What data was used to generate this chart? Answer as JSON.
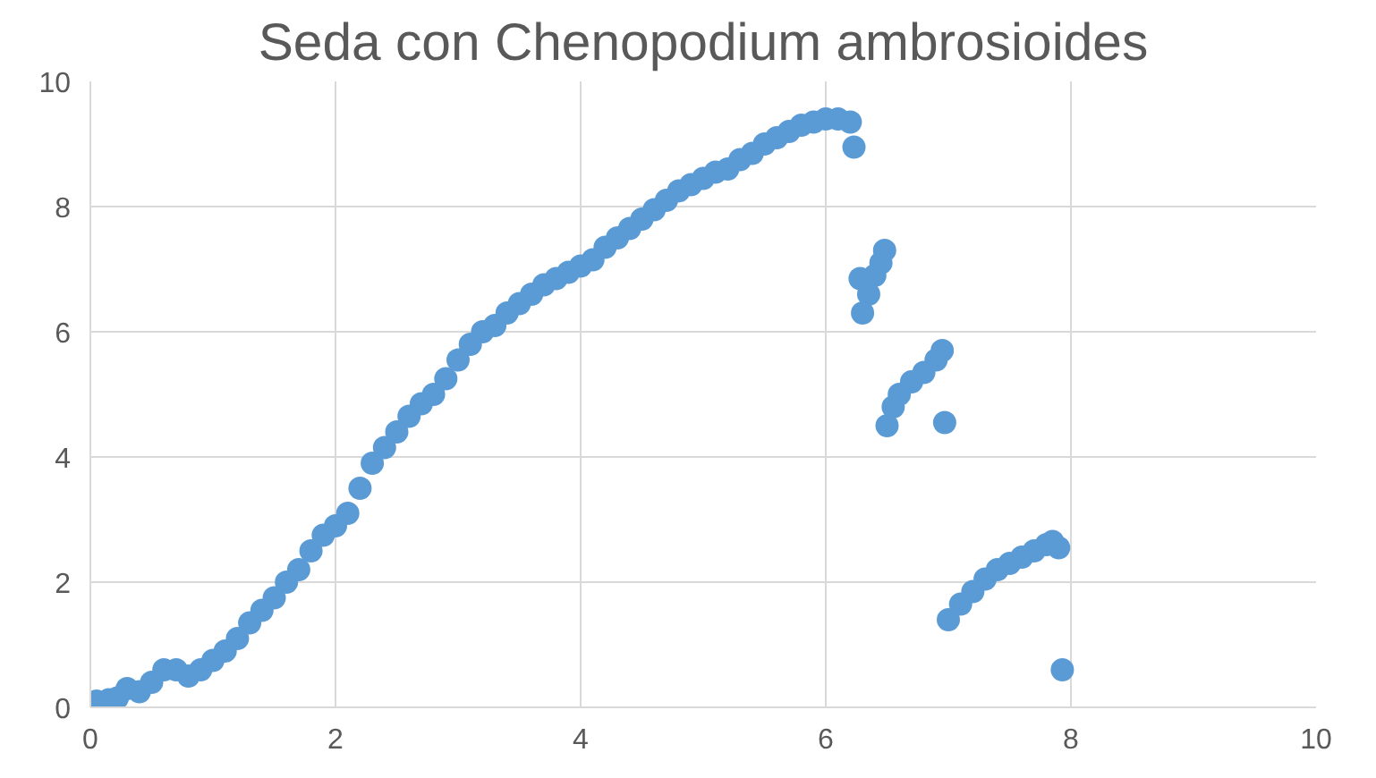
{
  "chart_data": {
    "type": "scatter",
    "title": "Seda con Chenopodium ambrosioides",
    "marker": "circle",
    "grid": true,
    "color": "#5b9bd5",
    "xlim": [
      0,
      10
    ],
    "xticks": [
      0,
      2,
      4,
      6,
      8,
      10
    ],
    "ylim": [
      0,
      10
    ],
    "yticks": [
      0,
      2,
      4,
      6,
      8,
      10
    ],
    "x": [
      0.05,
      0.15,
      0.22,
      0.3,
      0.4,
      0.5,
      0.6,
      0.7,
      0.8,
      0.9,
      1.0,
      1.1,
      1.2,
      1.3,
      1.4,
      1.5,
      1.6,
      1.7,
      1.8,
      1.9,
      2.0,
      2.1,
      2.2,
      2.3,
      2.4,
      2.5,
      2.6,
      2.7,
      2.8,
      2.9,
      3.0,
      3.1,
      3.2,
      3.3,
      3.4,
      3.5,
      3.6,
      3.7,
      3.8,
      3.9,
      4.0,
      4.1,
      4.2,
      4.3,
      4.4,
      4.5,
      4.6,
      4.7,
      4.8,
      4.9,
      5.0,
      5.1,
      5.2,
      5.3,
      5.4,
      5.5,
      5.6,
      5.7,
      5.8,
      5.9,
      6.0,
      6.1,
      6.2,
      6.23,
      6.28,
      6.3,
      6.35,
      6.4,
      6.45,
      6.48,
      6.5,
      6.55,
      6.6,
      6.7,
      6.8,
      6.9,
      6.95,
      6.97,
      7.0,
      7.1,
      7.2,
      7.3,
      7.4,
      7.5,
      7.6,
      7.7,
      7.8,
      7.85,
      7.9,
      7.93
    ],
    "values": [
      0.1,
      0.12,
      0.15,
      0.3,
      0.25,
      0.4,
      0.6,
      0.6,
      0.5,
      0.6,
      0.75,
      0.9,
      1.1,
      1.35,
      1.55,
      1.75,
      2.0,
      2.2,
      2.5,
      2.75,
      2.9,
      3.1,
      3.5,
      3.9,
      4.15,
      4.4,
      4.65,
      4.85,
      5.0,
      5.25,
      5.55,
      5.8,
      6.0,
      6.1,
      6.3,
      6.45,
      6.6,
      6.75,
      6.85,
      6.95,
      7.05,
      7.15,
      7.35,
      7.5,
      7.65,
      7.8,
      7.95,
      8.1,
      8.25,
      8.35,
      8.45,
      8.55,
      8.6,
      8.75,
      8.85,
      9.0,
      9.1,
      9.2,
      9.3,
      9.35,
      9.4,
      9.4,
      9.35,
      8.95,
      6.85,
      6.3,
      6.6,
      6.9,
      7.1,
      7.3,
      4.5,
      4.8,
      5.0,
      5.2,
      5.35,
      5.55,
      5.7,
      4.55,
      1.4,
      1.65,
      1.85,
      2.05,
      2.2,
      2.3,
      2.4,
      2.5,
      2.6,
      2.65,
      2.55,
      0.6
    ]
  }
}
